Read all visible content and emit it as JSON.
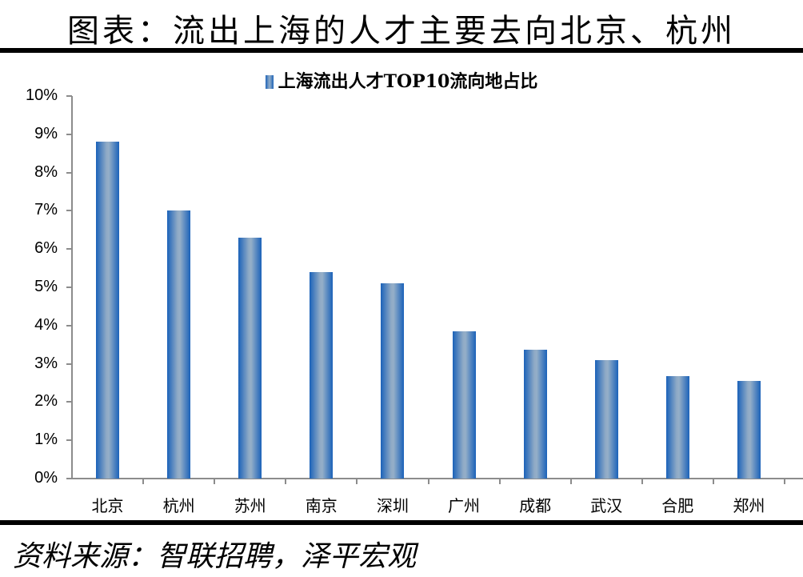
{
  "header": {
    "title": "图表：流出上海的人才主要去向北京、杭州"
  },
  "footer": {
    "source": "资料来源：智联招聘，泽平宏观"
  },
  "colors": {
    "bar": "#1f64b8",
    "bar_highlight": "#93aec9",
    "axis": "#8c8c8c"
  },
  "chart_data": {
    "type": "bar",
    "title": "图表：流出上海的人才主要去向北京、杭州",
    "legend": [
      "上海流出人才TOP10流向地占比"
    ],
    "legend_position": "top",
    "categories": [
      "北京",
      "杭州",
      "苏州",
      "南京",
      "深圳",
      "广州",
      "成都",
      "武汉",
      "合肥",
      "郑州"
    ],
    "series": [
      {
        "name": "上海流出人才TOP10流向地占比",
        "values": [
          8.8,
          7.0,
          6.3,
          5.4,
          5.1,
          3.85,
          3.37,
          3.1,
          2.68,
          2.55
        ]
      }
    ],
    "xlabel": "",
    "ylabel": "",
    "ylim": [
      0,
      10
    ],
    "yticks": [
      "0%",
      "1%",
      "2%",
      "3%",
      "4%",
      "5%",
      "6%",
      "7%",
      "8%",
      "9%",
      "10%"
    ],
    "grid": false
  }
}
